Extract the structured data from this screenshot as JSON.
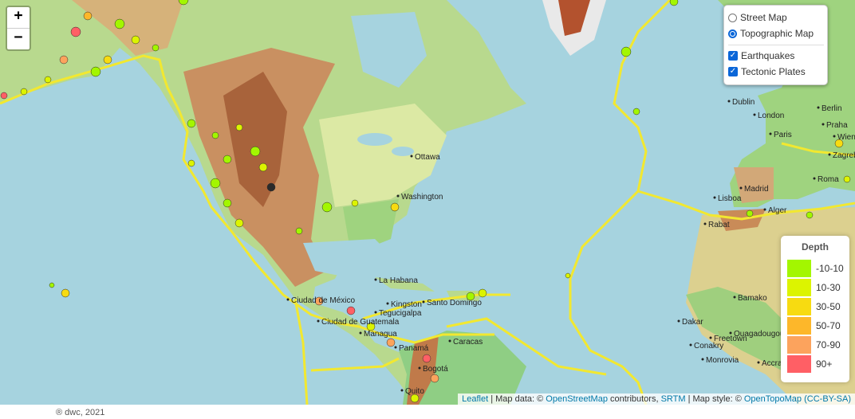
{
  "zoom": {
    "in_label": "+",
    "out_label": "−"
  },
  "layers": {
    "base": [
      {
        "label": "Street Map",
        "selected": false
      },
      {
        "label": "Topographic Map",
        "selected": true
      }
    ],
    "overlays": [
      {
        "label": "Earthquakes",
        "checked": true
      },
      {
        "label": "Tectonic Plates",
        "checked": true
      }
    ]
  },
  "legend": {
    "title": "Depth",
    "items": [
      {
        "label": "-10-10",
        "color": "#a3f600"
      },
      {
        "label": "10-30",
        "color": "#dcf400"
      },
      {
        "label": "30-50",
        "color": "#f7db11"
      },
      {
        "label": "50-70",
        "color": "#fdb72a"
      },
      {
        "label": "70-90",
        "color": "#fca35d"
      },
      {
        "label": "90+",
        "color": "#ff5f65"
      }
    ]
  },
  "attribution": {
    "leaflet": "Leaflet",
    "sep1": " | Map data: © ",
    "osm": "OpenStreetMap",
    "contrib": " contributors, ",
    "srtm": "SRTM",
    "sep2": " | Map style: © ",
    "otm": "OpenTopoMap",
    "license": "(CC-BY-SA)"
  },
  "footer": "® dwc, 2021",
  "cities": [
    "Ottawa",
    "Washington",
    "La Habana",
    "Ciudad de México",
    "Kingston",
    "Santo Domingo",
    "Tegucigalpa",
    "Ciudad de Guatemala",
    "Managua",
    "Panamá",
    "Caracas",
    "Bogotá",
    "Quito",
    "Dublin",
    "London",
    "Paris",
    "Berlin",
    "Praha",
    "Wien",
    "Zagreb",
    "Roma",
    "Madrid",
    "Lisboa",
    "Alger",
    "Rabat",
    "Dakar",
    "Bamako",
    "Ouagadougou",
    "Conakry",
    "Freetown",
    "Monrovia",
    "Accra"
  ],
  "colors": {
    "ocean": "#a6d3df",
    "plate_boundary": "#f2e830"
  }
}
